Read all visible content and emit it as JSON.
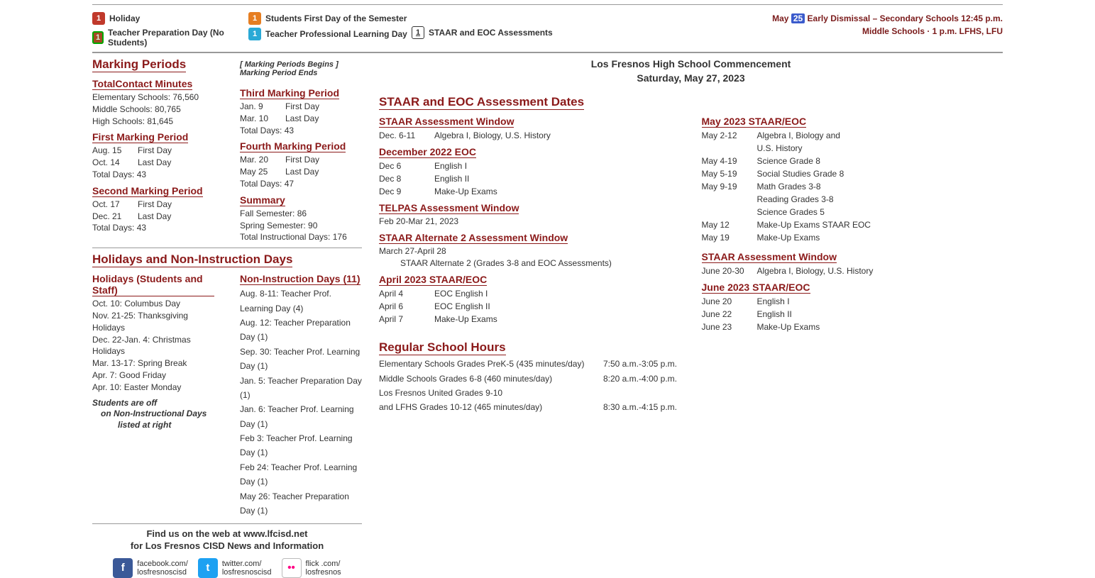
{
  "legend": {
    "holiday": "Holiday",
    "prep": "Teacher Preparation Day (No Students)",
    "firstday": "Students First Day of the Semester",
    "prof": "Teacher Professional Learning Day",
    "staar": "STAAR and EOC Assessments",
    "early_prefix": "May",
    "early_day": "25",
    "early_text": "Early Dismissal – Secondary Schools 12:45 p.m.",
    "early_line2": "Middle Schools · 1 p.m. LFHS, LFU"
  },
  "marking": {
    "heading": "Marking Periods",
    "note": "[ Marking Periods Begins    ] Marking Period Ends",
    "total_heading": "TotalContact Minutes",
    "elem": "Elementary Schools: 76,560",
    "mid": "Middle Schools: 80,765",
    "high": "High Schools: 81,645",
    "mp1_h": "First Marking Period",
    "mp1_a": "Aug. 15",
    "mp1_at": "First Day",
    "mp1_b": "Oct. 14",
    "mp1_bt": "Last Day",
    "mp1_t": "Total Days: 43",
    "mp2_h": "Second Marking Period",
    "mp2_a": "Oct. 17",
    "mp2_at": "First Day",
    "mp2_b": "Dec. 21",
    "mp2_bt": "Last Day",
    "mp2_t": "Total Days: 43",
    "mp3_h": "Third Marking Period",
    "mp3_a": "Jan. 9",
    "mp3_at": "First Day",
    "mp3_b": "Mar. 10",
    "mp3_bt": "Last Day",
    "mp3_t": "Total Days: 43",
    "mp4_h": "Fourth Marking Period",
    "mp4_a": "Mar. 20",
    "mp4_at": "First Day",
    "mp4_b": "May 25",
    "mp4_bt": "Last Day",
    "mp4_t": "Total Days: 47",
    "sum_h": "Summary",
    "sum_a": "Fall Semester: 86",
    "sum_b": "Spring Semester: 90",
    "sum_c": "Total Instructional Days: 176"
  },
  "holidays": {
    "heading": "Holidays and Non-Instruction Days",
    "h1": "Holidays (Students and Staff)",
    "items": [
      "Oct. 10: Columbus Day",
      "Nov. 21-25: Thanksgiving Holidays",
      "Dec. 22-Jan. 4: Christmas Holidays",
      "Mar. 13-17: Spring Break",
      "Apr. 7: Good Friday",
      "Apr. 10: Easter Monday"
    ],
    "off1": "Students are off",
    "off2": "on Non-Instructional Days",
    "off3": "listed at right",
    "ni_h": "Non-Instruction Days (11)",
    "ni": [
      "Aug. 8-11: Teacher Prof. Learning Day (4)",
      "Aug. 12: Teacher Preparation Day (1)",
      "Sep. 30: Teacher Prof. Learning Day (1)",
      "Jan. 5: Teacher Preparation Day (1)",
      "Jan. 6: Teacher Prof. Learning Day (1)",
      "Feb 3: Teacher Prof. Learning Day (1)",
      "Feb 24: Teacher Prof. Learning Day (1)",
      "May 26: Teacher Preparation Day (1)"
    ]
  },
  "footer": {
    "line1": "Find us on the web at www.lfcisd.net",
    "line2": "for Los Fresnos CISD News and Information",
    "fb1": "facebook.com/",
    "fb2": "losfresnoscisd",
    "tw1": "twitter.com/",
    "tw2": "losfresnoscisd",
    "fl1": "flick .com/",
    "fl2": "losfresnos"
  },
  "commence": {
    "l1": "Los Fresnos High School Commencement",
    "l2": "Saturday, May 27, 2023"
  },
  "assess": {
    "heading": "STAAR and EOC Assessment Dates",
    "w1_h": "STAAR Assessment Window",
    "w1_a": "Dec. 6-11",
    "w1_b": "Algebra I, Biology, U.S. History",
    "dec_h": "December 2022 EOC",
    "dec": [
      [
        "Dec 6",
        "English I"
      ],
      [
        "Dec 8",
        "English II"
      ],
      [
        "Dec 9",
        "Make-Up Exams"
      ]
    ],
    "tel_h": "TELPAS Assessment Window",
    "tel": "Feb 20-Mar 21, 2023",
    "alt_h": "STAAR Alternate 2 Assessment Window",
    "alt_a": "March 27-April 28",
    "alt_b": "STAAR Alternate 2 (Grades 3-8 and EOC Assessments)",
    "apr_h": "April 2023 STAAR/EOC",
    "apr": [
      [
        "April 4",
        "EOC English I"
      ],
      [
        "April 6",
        "EOC English II"
      ],
      [
        "April 7",
        "Make-Up Exams"
      ]
    ],
    "may_h": "May 2023 STAAR/EOC",
    "may": [
      [
        "May 2-12",
        "Algebra I, Biology and"
      ],
      [
        "",
        "U.S. History"
      ],
      [
        "May 4-19",
        "Science Grade 8"
      ],
      [
        "May 5-19",
        "Social Studies Grade 8"
      ],
      [
        "May 9-19",
        "Math Grades 3-8"
      ],
      [
        "",
        "Reading Grades 3-8"
      ],
      [
        "",
        "Science Grades 5"
      ],
      [
        "May 12",
        "Make-Up Exams STAAR EOC"
      ],
      [
        "May 19",
        "Make-Up Exams"
      ]
    ],
    "jw_h": "STAAR Assessment Window",
    "jw": [
      [
        "June 20-30",
        "Algebra I, Biology, U.S. History"
      ]
    ],
    "jun_h": "June 2023 STAAR/EOC",
    "jun": [
      [
        "June 20",
        "English I"
      ],
      [
        "June 22",
        "English II"
      ],
      [
        "June 23",
        "Make-Up Exams"
      ]
    ]
  },
  "hours": {
    "heading": "Regular School Hours",
    "rows": [
      [
        "Elementary Schools Grades PreK-5 (435 minutes/day)",
        "7:50 a.m.-3:05 p.m."
      ],
      [
        "Middle Schools Grades 6-8 (460 minutes/day)",
        "8:20 a.m.-4:00 p.m."
      ],
      [
        "Los Fresnos United Grades 9-10",
        ""
      ],
      [
        "  and LFHS Grades 10-12 (465 minutes/day)",
        "8:30 a.m.-4:15 p.m."
      ]
    ]
  },
  "colors": {
    "maroon": "#8b1a1a"
  }
}
